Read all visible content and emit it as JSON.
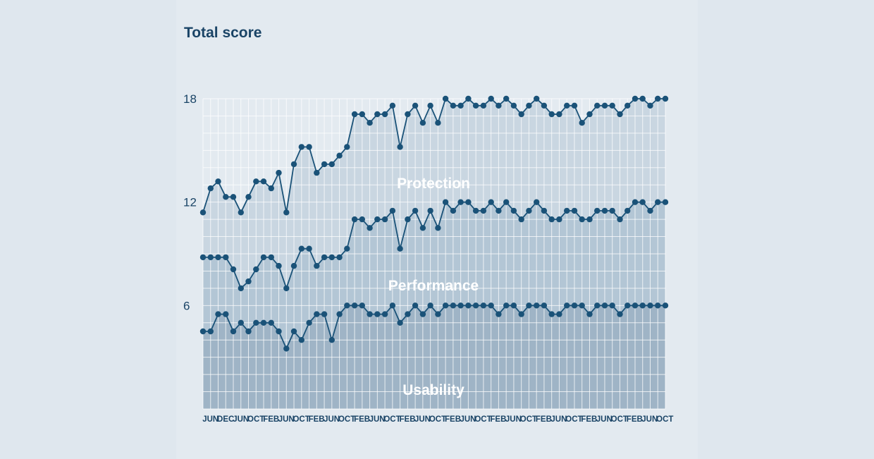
{
  "chart_data": {
    "type": "area",
    "title": "Total score",
    "xlabel": "",
    "ylabel": "",
    "ylim": [
      0,
      18
    ],
    "yticks": [
      6,
      12,
      18
    ],
    "grid": true,
    "x_tick_labels": [
      "JUN",
      "DEC",
      "JUN",
      "OCT",
      "FEB",
      "JUN",
      "OCT",
      "FEB",
      "JUN",
      "OCT",
      "FEB",
      "JUN",
      "OCT",
      "FEB",
      "JUN",
      "OCT",
      "FEB",
      "JUN",
      "OCT",
      "FEB",
      "JUN",
      "OCT",
      "FEB",
      "JUN",
      "OCT",
      "FEB",
      "JUN",
      "OCT",
      "FEB",
      "JUN",
      "OCT"
    ],
    "band_labels": [
      "Protection",
      "Performance",
      "Usability"
    ],
    "band_colors": [
      "#c9d6e1",
      "#b3c6d5",
      "#9fb4c6"
    ],
    "line_color": "#1a5278",
    "series": [
      {
        "name": "Protection",
        "values": [
          11.4,
          12.8,
          13.2,
          12.3,
          12.3,
          11.4,
          12.3,
          13.2,
          13.2,
          12.8,
          13.7,
          11.4,
          14.2,
          15.2,
          15.2,
          13.7,
          14.2,
          14.2,
          14.7,
          15.2,
          17.1,
          17.1,
          16.6,
          17.1,
          17.1,
          17.6,
          15.2,
          17.1,
          17.6,
          16.6,
          17.6,
          16.6,
          18.0,
          17.6,
          17.6,
          18.0,
          17.6,
          17.6,
          18.0,
          17.6,
          18.0,
          17.6,
          17.1,
          17.6,
          18.0,
          17.6,
          17.1,
          17.1,
          17.6,
          17.6,
          16.6,
          17.1,
          17.6,
          17.6,
          17.6,
          17.1,
          17.6,
          18.0,
          18.0,
          17.6,
          18.0,
          18.0
        ]
      },
      {
        "name": "Performance",
        "values": [
          8.8,
          8.8,
          8.8,
          8.8,
          8.1,
          7.0,
          7.4,
          8.1,
          8.8,
          8.8,
          8.3,
          7.0,
          8.3,
          9.3,
          9.3,
          8.3,
          8.8,
          8.8,
          8.8,
          9.3,
          11.0,
          11.0,
          10.5,
          11.0,
          11.0,
          11.5,
          9.3,
          11.0,
          11.5,
          10.5,
          11.5,
          10.5,
          12.0,
          11.5,
          12.0,
          12.0,
          11.5,
          11.5,
          12.0,
          11.5,
          12.0,
          11.5,
          11.0,
          11.5,
          12.0,
          11.5,
          11.0,
          11.0,
          11.5,
          11.5,
          11.0,
          11.0,
          11.5,
          11.5,
          11.5,
          11.0,
          11.5,
          12.0,
          12.0,
          11.5,
          12.0,
          12.0
        ]
      },
      {
        "name": "Usability",
        "values": [
          4.5,
          4.5,
          5.5,
          5.5,
          4.5,
          5.0,
          4.5,
          5.0,
          5.0,
          5.0,
          4.5,
          3.5,
          4.5,
          4.0,
          5.0,
          5.5,
          5.5,
          4.0,
          5.5,
          6.0,
          6.0,
          6.0,
          5.5,
          5.5,
          5.5,
          6.0,
          5.0,
          5.5,
          6.0,
          5.5,
          6.0,
          5.5,
          6.0,
          6.0,
          6.0,
          6.0,
          6.0,
          6.0,
          6.0,
          5.5,
          6.0,
          6.0,
          5.5,
          6.0,
          6.0,
          6.0,
          5.5,
          5.5,
          6.0,
          6.0,
          6.0,
          5.5,
          6.0,
          6.0,
          6.0,
          5.5,
          6.0,
          6.0,
          6.0,
          6.0,
          6.0,
          6.0
        ]
      }
    ]
  }
}
